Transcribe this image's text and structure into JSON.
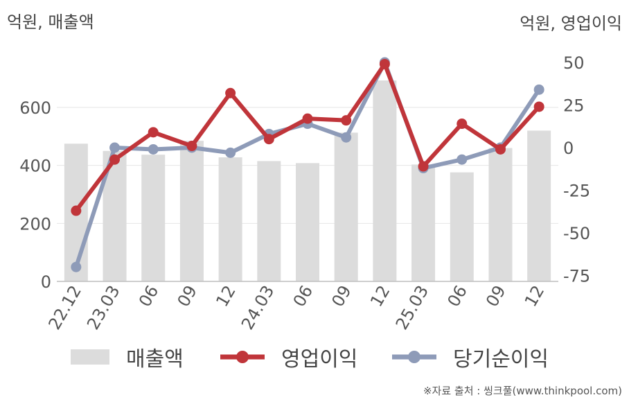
{
  "units": {
    "left": "억원, 매출액",
    "right": "억원, 영업이익"
  },
  "legend": {
    "sales": "매출액",
    "op": "영업이익",
    "net": "당기순이익"
  },
  "source": "※자료 출처 : 씽크풀(www.thinkpool.com)",
  "colors": {
    "sales": "#dcdcdc",
    "op": "#c0353a",
    "net": "#8e9bb8"
  },
  "chart_data": {
    "type": "bar",
    "categories": [
      "22.12",
      "23.03",
      "06",
      "09",
      "12",
      "24.03",
      "06",
      "09",
      "12",
      "25.03",
      "06",
      "09",
      "12"
    ],
    "left_axis": {
      "ylim": [
        0,
        700
      ],
      "ticks": [
        0,
        200,
        400,
        600
      ],
      "label": "억원, 매출액"
    },
    "right_axis": {
      "ylim": [
        -80,
        55
      ],
      "ticks": [
        -75,
        -50,
        -25,
        0,
        25,
        50
      ],
      "label": "억원, 영업이익"
    },
    "series": [
      {
        "name": "매출액",
        "type": "bar",
        "axis": "left",
        "values": [
          475,
          450,
          437,
          485,
          428,
          415,
          408,
          513,
          693,
          403,
          376,
          460,
          520
        ]
      },
      {
        "name": "영업이익",
        "type": "line",
        "axis": "right",
        "values": [
          -37,
          -7,
          9,
          1,
          32,
          5,
          17,
          16,
          49,
          -11,
          14,
          -1,
          24
        ]
      },
      {
        "name": "당기순이익",
        "type": "line",
        "axis": "right",
        "values": [
          -70,
          0,
          -1,
          0,
          -3,
          8,
          14,
          6,
          50,
          -12,
          -7,
          0,
          34
        ]
      }
    ]
  }
}
